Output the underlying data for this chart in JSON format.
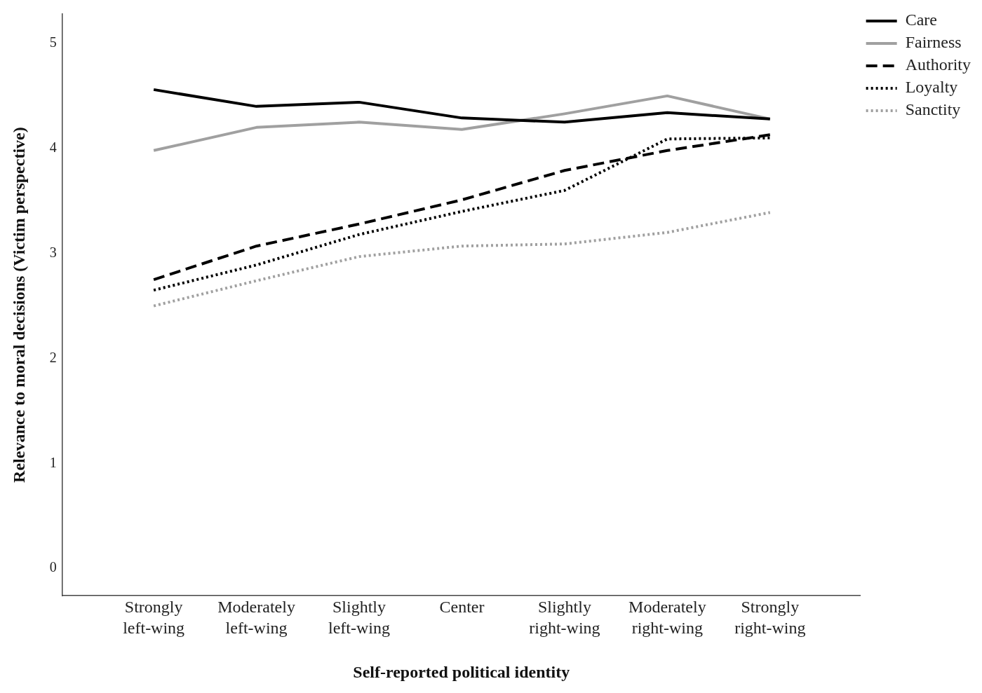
{
  "chart_data": {
    "type": "line",
    "xlabel": "Self-reported political identity",
    "ylabel": "Relevance to moral decisions (Victim perspective)",
    "categories": [
      "Strongly left-wing",
      "Moderately left-wing",
      "Slightly left-wing",
      "Center",
      "Slightly right-wing",
      "Moderately right-wing",
      "Strongly right-wing"
    ],
    "series": [
      {
        "name": "Care",
        "color": "#000000",
        "line_style": "solid",
        "values": [
          4.56,
          4.4,
          4.44,
          4.29,
          4.25,
          4.34,
          4.28
        ]
      },
      {
        "name": "Fairness",
        "color": "#a0a0a0",
        "line_style": "solid",
        "values": [
          3.98,
          4.2,
          4.25,
          4.18,
          4.33,
          4.5,
          4.28
        ]
      },
      {
        "name": "Authority",
        "color": "#000000",
        "line_style": "dashed",
        "values": [
          2.75,
          3.07,
          3.28,
          3.51,
          3.79,
          3.98,
          4.13
        ]
      },
      {
        "name": "Loyalty",
        "color": "#000000",
        "line_style": "dotted",
        "values": [
          2.65,
          2.89,
          3.18,
          3.4,
          3.6,
          4.09,
          4.1
        ]
      },
      {
        "name": "Sanctity",
        "color": "#a0a0a0",
        "line_style": "dotted",
        "values": [
          2.5,
          2.74,
          2.97,
          3.07,
          3.09,
          3.2,
          3.39
        ]
      }
    ],
    "ylim": [
      -0.26,
      5.28
    ],
    "yticks": [
      0,
      1,
      2,
      3,
      4,
      5
    ],
    "grid": false,
    "legend": "top right",
    "marker": "none"
  }
}
